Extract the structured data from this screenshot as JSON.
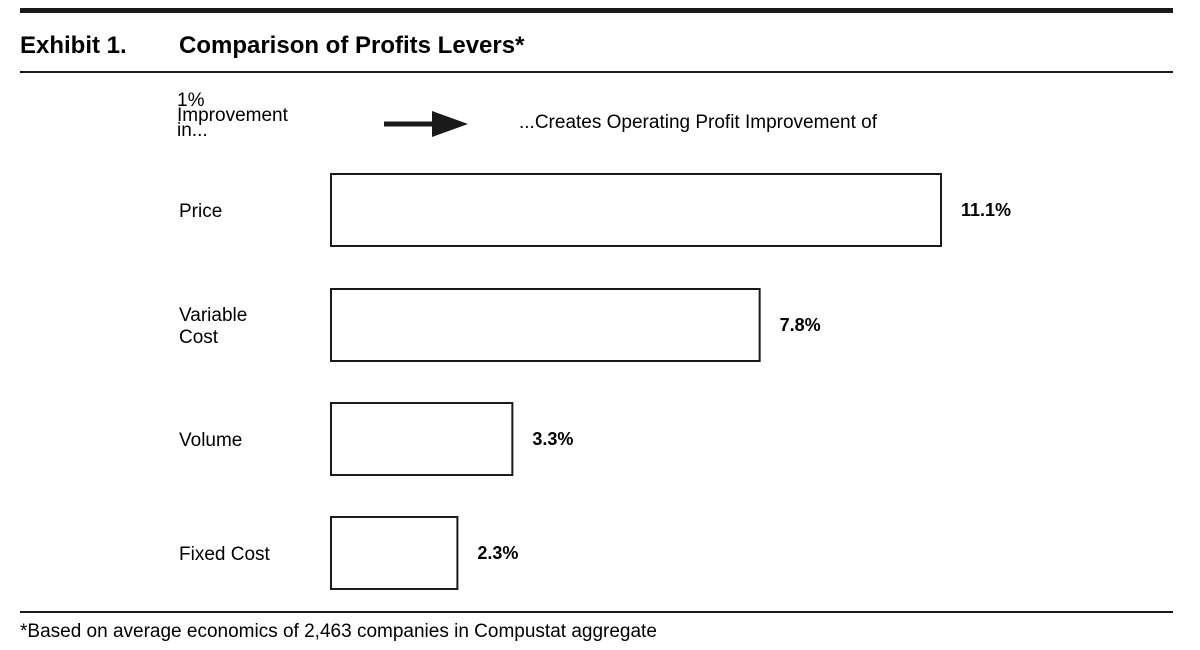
{
  "header": {
    "exhibit_label": "Exhibit 1.",
    "title": "Comparison of Profits Levers*"
  },
  "legend_text": {
    "left": "1%\nImprovement\nin...",
    "right": "...Creates Operating Profit Improvement of",
    "arrow_icon": "right-arrow-icon"
  },
  "chart_data": {
    "type": "bar",
    "orientation": "horizontal",
    "title": "Comparison of Profits Levers*",
    "categories": [
      "Price",
      "Variable\nCost",
      "Volume",
      "Fixed Cost"
    ],
    "values": [
      11.1,
      7.8,
      3.3,
      2.3
    ],
    "value_labels": [
      "11.1%",
      "7.8%",
      "3.3%",
      "2.3%"
    ],
    "xlabel": "",
    "ylabel": "",
    "unit": "%",
    "grid": false,
    "bar_fill": "#ffffff",
    "bar_stroke": "#1a1a1a"
  },
  "footnote": "*Based on average economics of 2,463 companies in Compustat aggregate"
}
